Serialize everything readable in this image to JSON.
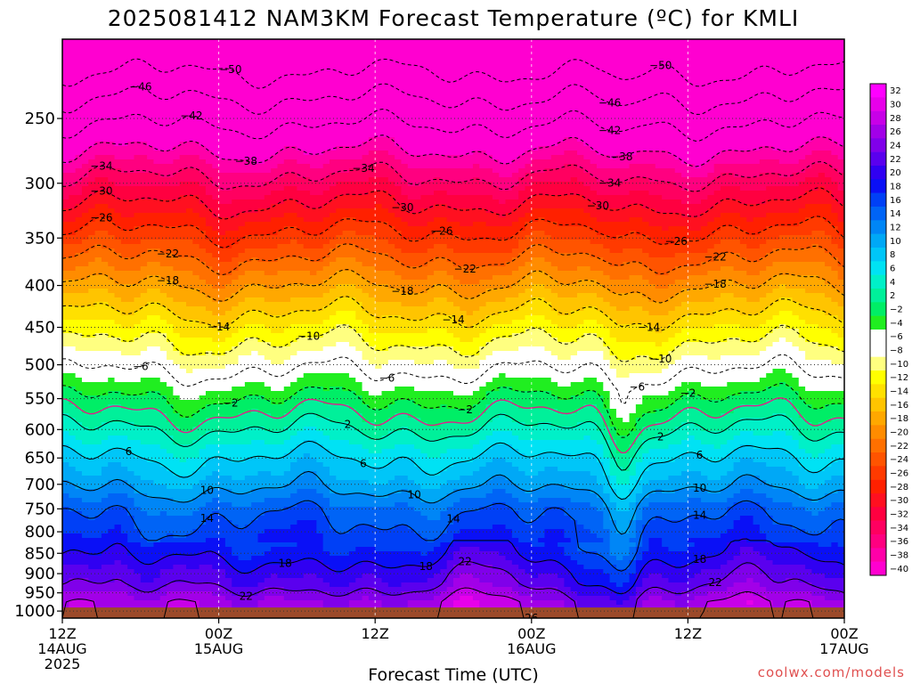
{
  "chart_data": {
    "type": "heatmap",
    "title": "2025081412 NAM3KM Forecast Temperature (ºC) for KMLI",
    "xlabel": "Forecast Time (UTC)",
    "ylabel": "",
    "credit": "coolwx.com/models",
    "y_scale": "log",
    "y_inverted": true,
    "y_unit": "hPa",
    "y_range": [
      1020,
      200
    ],
    "y_ticks": [
      "250",
      "300",
      "350",
      "400",
      "450",
      "500",
      "550",
      "600",
      "650",
      "700",
      "750",
      "800",
      "850",
      "900",
      "950",
      "1000"
    ],
    "y_tick_values": [
      250,
      300,
      350,
      400,
      450,
      500,
      550,
      600,
      650,
      700,
      750,
      800,
      850,
      900,
      950,
      1000
    ],
    "x_range_hours": [
      0,
      60
    ],
    "x_ticks": [
      {
        "hour": 0,
        "line1": "12Z",
        "line2": "14AUG",
        "line3": "2025"
      },
      {
        "hour": 12,
        "line1": "00Z",
        "line2": "15AUG",
        "line3": ""
      },
      {
        "hour": 24,
        "line1": "12Z",
        "line2": "",
        "line3": ""
      },
      {
        "hour": 36,
        "line1": "00Z",
        "line2": "16AUG",
        "line3": ""
      },
      {
        "hour": 48,
        "line1": "12Z",
        "line2": "",
        "line3": ""
      },
      {
        "hour": 60,
        "line1": "00Z",
        "line2": "17AUG",
        "line3": ""
      }
    ],
    "colorbar": {
      "min": -40,
      "max": 32,
      "step": 2,
      "labels": [
        "32",
        "30",
        "28",
        "26",
        "24",
        "22",
        "20",
        "18",
        "16",
        "14",
        "12",
        "10",
        "8",
        "6",
        "4",
        "2",
        "−2",
        "−4",
        "−6",
        "−8",
        "−10",
        "−12",
        "−14",
        "−16",
        "−18",
        "−20",
        "−22",
        "−24",
        "−26",
        "−28",
        "−30",
        "−32",
        "−34",
        "−36",
        "−38",
        "−40"
      ]
    },
    "temperature_profile": [
      {
        "p": 1000,
        "t": 25
      },
      {
        "p": 975,
        "t": 25
      },
      {
        "p": 950,
        "t": 23
      },
      {
        "p": 925,
        "t": 21
      },
      {
        "p": 900,
        "t": 20
      },
      {
        "p": 850,
        "t": 17
      },
      {
        "p": 800,
        "t": 15
      },
      {
        "p": 750,
        "t": 13
      },
      {
        "p": 700,
        "t": 9
      },
      {
        "p": 650,
        "t": 6
      },
      {
        "p": 600,
        "t": 2
      },
      {
        "p": 550,
        "t": -2
      },
      {
        "p": 500,
        "t": -7
      },
      {
        "p": 450,
        "t": -12
      },
      {
        "p": 400,
        "t": -18
      },
      {
        "p": 350,
        "t": -25
      },
      {
        "p": 300,
        "t": -33
      },
      {
        "p": 250,
        "t": -43
      },
      {
        "p": 200,
        "t": -55
      }
    ],
    "contours": [
      {
        "level": -50,
        "label": "−50",
        "labels_at_hours": [
          13,
          46
        ]
      },
      {
        "level": -46,
        "label": "−46",
        "labels_at_hours": [
          6,
          42
        ]
      },
      {
        "level": -42,
        "label": "−42",
        "labels_at_hours": [
          10,
          42
        ]
      },
      {
        "level": -38,
        "label": "−38",
        "labels_at_hours": [
          14,
          43
        ]
      },
      {
        "level": -34,
        "label": "−34",
        "labels_at_hours": [
          3,
          23,
          42
        ]
      },
      {
        "level": -30,
        "label": "−30",
        "labels_at_hours": [
          3,
          26,
          41
        ]
      },
      {
        "level": -26,
        "label": "−26",
        "labels_at_hours": [
          3,
          29,
          47
        ]
      },
      {
        "level": -22,
        "label": "−22",
        "labels_at_hours": [
          8,
          31,
          50
        ]
      },
      {
        "level": -18,
        "label": "−18",
        "labels_at_hours": [
          8,
          26,
          50
        ]
      },
      {
        "level": -14,
        "label": "−14",
        "labels_at_hours": [
          12,
          30,
          45
        ]
      },
      {
        "level": -10,
        "label": "−10",
        "labels_at_hours": [
          19,
          46
        ]
      },
      {
        "level": -6,
        "label": "−6",
        "labels_at_hours": [
          6,
          25,
          44
        ]
      },
      {
        "level": -2,
        "label": "−2",
        "labels_at_hours": [
          13,
          31,
          48
        ]
      },
      {
        "level": 2,
        "label": "2",
        "labels_at_hours": [
          22,
          46
        ]
      },
      {
        "level": 6,
        "label": "6",
        "labels_at_hours": [
          5,
          23,
          49
        ]
      },
      {
        "level": 10,
        "label": "10",
        "labels_at_hours": [
          11,
          27,
          49
        ]
      },
      {
        "level": 14,
        "label": "14",
        "labels_at_hours": [
          11,
          30,
          49
        ]
      },
      {
        "level": 18,
        "label": "18",
        "labels_at_hours": [
          17,
          28,
          49
        ]
      },
      {
        "level": 22,
        "label": "22",
        "labels_at_hours": [
          14,
          31,
          50
        ]
      },
      {
        "level": 26,
        "label": "26",
        "labels_at_hours": [
          36
        ]
      }
    ],
    "freezing_line": {
      "level": 0,
      "color": "#e0208a"
    },
    "grid": true,
    "legend": "colorbar-right",
    "colors": {
      "surface": "#9c4a2a",
      "palette": [
        "#ff00ff",
        "#e800ea",
        "#c800e8",
        "#a200e8",
        "#8000ea",
        "#5a00ee",
        "#3000f2",
        "#0a10f6",
        "#0040f6",
        "#0064f6",
        "#0086f6",
        "#00a8f6",
        "#00c6f8",
        "#00e2f4",
        "#00f0c8",
        "#00f09a",
        "#00ee66",
        "#20ee20",
        "#ffffff",
        "#ffffff",
        "#ffff80",
        "#ffff00",
        "#ffe000",
        "#ffc400",
        "#ffa800",
        "#ff8c00",
        "#ff7000",
        "#ff5400",
        "#ff3a00",
        "#ff2000",
        "#ff1020",
        "#ff0040",
        "#ff0060",
        "#ff0080",
        "#ff00a8",
        "#ff00d0"
      ]
    }
  }
}
